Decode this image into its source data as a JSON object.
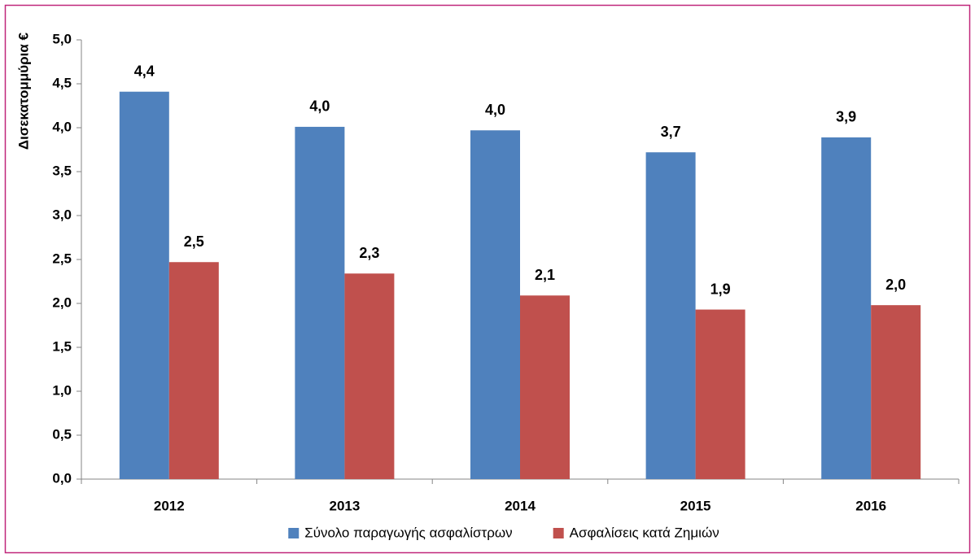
{
  "chart_data": {
    "type": "bar",
    "y_label": "Δισεκατομμύρια €",
    "categories": [
      "2012",
      "2013",
      "2014",
      "2015",
      "2016"
    ],
    "series": [
      {
        "name": "Σύνολο παραγωγής ασφαλίστρων",
        "color": "#4f81bd",
        "values": [
          4.41,
          4.01,
          3.97,
          3.72,
          3.89
        ],
        "value_labels": [
          "4,4",
          "4,0",
          "4,0",
          "3,7",
          "3,9"
        ]
      },
      {
        "name": "Ασφαλίσεις κατά Ζημιών",
        "color": "#c0504d",
        "values": [
          2.47,
          2.34,
          2.09,
          1.93,
          1.98
        ],
        "value_labels": [
          "2,5",
          "2,3",
          "2,1",
          "1,9",
          "2,0"
        ]
      }
    ],
    "ylim": [
      0,
      5
    ],
    "yticks": [
      {
        "value": 0,
        "label": "0,0"
      },
      {
        "value": 0.5,
        "label": "0,5"
      },
      {
        "value": 1,
        "label": "1,0"
      },
      {
        "value": 1.5,
        "label": "1,5"
      },
      {
        "value": 2,
        "label": "2,0"
      },
      {
        "value": 2.5,
        "label": "2,5"
      },
      {
        "value": 3,
        "label": "3,0"
      },
      {
        "value": 3.5,
        "label": "3,5"
      },
      {
        "value": 4,
        "label": "4,0"
      },
      {
        "value": 4.5,
        "label": "4,5"
      },
      {
        "value": 5,
        "label": "5,0"
      }
    ],
    "grid": false,
    "legend": "bottom"
  }
}
